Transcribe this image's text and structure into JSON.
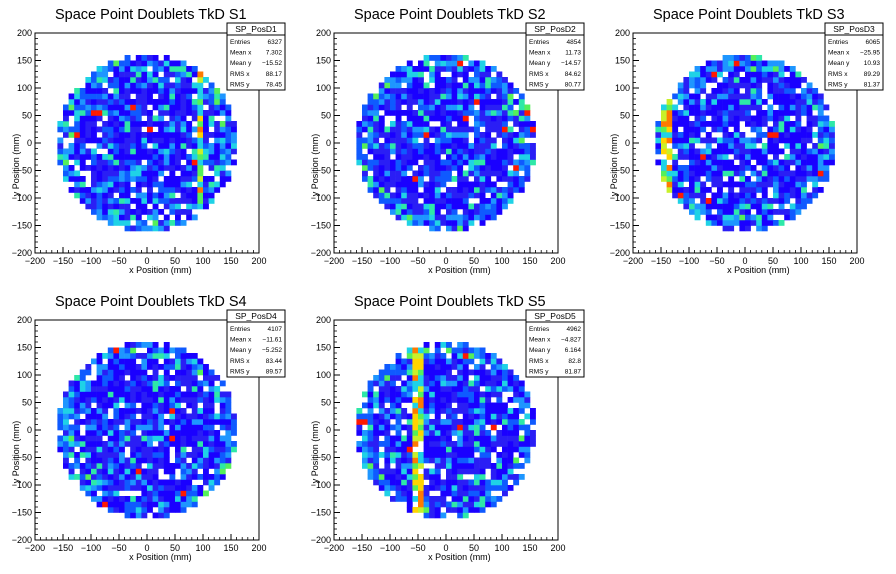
{
  "charts": [
    {
      "title": "Space Point Doublets TkD S1",
      "xlabel": "x Position (mm)",
      "ylabel": "y Position (mm)",
      "stats": {
        "name": "SP_PosD1",
        "rows": [
          {
            "label": "Entries",
            "value": "6327"
          },
          {
            "label": "Mean x",
            "value": "7.302"
          },
          {
            "label": "Mean y",
            "value": "−15.52"
          },
          {
            "label": "RMS x",
            "value": "88.17"
          },
          {
            "label": "RMS y",
            "value": "78.45"
          }
        ]
      }
    },
    {
      "title": "Space Point Doublets TkD S2",
      "xlabel": "x Position (mm)",
      "ylabel": "y Position (mm)",
      "stats": {
        "name": "SP_PosD2",
        "rows": [
          {
            "label": "Entries",
            "value": "4854"
          },
          {
            "label": "Mean x",
            "value": "11.73"
          },
          {
            "label": "Mean y",
            "value": "−14.57"
          },
          {
            "label": "RMS x",
            "value": "84.62"
          },
          {
            "label": "RMS y",
            "value": "80.77"
          }
        ]
      }
    },
    {
      "title": "Space Point Doublets TkD S3",
      "xlabel": "x Position (mm)",
      "ylabel": "y Position (mm)",
      "stats": {
        "name": "SP_PosD3",
        "rows": [
          {
            "label": "Entries",
            "value": "6065"
          },
          {
            "label": "Mean x",
            "value": "−25.95"
          },
          {
            "label": "Mean y",
            "value": "10.93"
          },
          {
            "label": "RMS x",
            "value": "89.29"
          },
          {
            "label": "RMS y",
            "value": "81.37"
          }
        ]
      }
    },
    {
      "title": "Space Point Doublets TkD S4",
      "xlabel": "x Position (mm)",
      "ylabel": "y Position (mm)",
      "stats": {
        "name": "SP_PosD4",
        "rows": [
          {
            "label": "Entries",
            "value": "4107"
          },
          {
            "label": "Mean x",
            "value": "−11.61"
          },
          {
            "label": "Mean y",
            "value": "−5.252"
          },
          {
            "label": "RMS x",
            "value": "83.44"
          },
          {
            "label": "RMS y",
            "value": "89.57"
          }
        ]
      }
    },
    {
      "title": "Space Point Doublets TkD S5",
      "xlabel": "x Position (mm)",
      "ylabel": "y Position (mm)",
      "stats": {
        "name": "SP_PosD5",
        "rows": [
          {
            "label": "Entries",
            "value": "4962"
          },
          {
            "label": "Mean x",
            "value": "−4.827"
          },
          {
            "label": "Mean y",
            "value": "6.164"
          },
          {
            "label": "RMS x",
            "value": "82.8"
          },
          {
            "label": "RMS y",
            "value": "81.87"
          }
        ]
      }
    }
  ],
  "chart_data": [
    {
      "type": "heatmap",
      "title": "Space Point Doublets TkD S1",
      "xlabel": "x Position (mm)",
      "ylabel": "y Position (mm)",
      "xlim": [
        -200,
        200
      ],
      "ylim": [
        -200,
        200
      ],
      "xticks": [
        -200,
        -150,
        -100,
        -50,
        0,
        50,
        100,
        150,
        200
      ],
      "yticks": [
        -200,
        -150,
        -100,
        -50,
        0,
        50,
        100,
        150,
        200
      ],
      "tick_labels": [
        "−200",
        "−150",
        "−100",
        "−50",
        "0",
        "50",
        "100",
        "150",
        "200"
      ],
      "detector_radius_mm": 160,
      "bin_width_mm": 10,
      "colormap": "rainbow",
      "hot_band_x_mm": 95
    },
    {
      "type": "heatmap",
      "title": "Space Point Doublets TkD S2",
      "xlabel": "x Position (mm)",
      "ylabel": "y Position (mm)",
      "xlim": [
        -200,
        200
      ],
      "ylim": [
        -200,
        200
      ],
      "xticks": [
        -200,
        -150,
        -100,
        -50,
        0,
        50,
        100,
        150,
        200
      ],
      "yticks": [
        -200,
        -150,
        -100,
        -50,
        0,
        50,
        100,
        150,
        200
      ],
      "tick_labels": [
        "−200",
        "−150",
        "−100",
        "−50",
        "0",
        "50",
        "100",
        "150",
        "200"
      ],
      "detector_radius_mm": 160,
      "bin_width_mm": 10,
      "colormap": "rainbow"
    },
    {
      "type": "heatmap",
      "title": "Space Point Doublets TkD S3",
      "xlabel": "x Position (mm)",
      "ylabel": "y Position (mm)",
      "xlim": [
        -200,
        200
      ],
      "ylim": [
        -200,
        200
      ],
      "xticks": [
        -200,
        -150,
        -100,
        -50,
        0,
        50,
        100,
        150,
        200
      ],
      "yticks": [
        -200,
        -150,
        -100,
        -50,
        0,
        50,
        100,
        150,
        200
      ],
      "tick_labels": [
        "−200",
        "−150",
        "−100",
        "−50",
        "0",
        "50",
        "100",
        "150",
        "200"
      ],
      "detector_radius_mm": 160,
      "bin_width_mm": 10,
      "colormap": "rainbow",
      "hot_band_x_mm": -140
    },
    {
      "type": "heatmap",
      "title": "Space Point Doublets TkD S4",
      "xlabel": "x Position (mm)",
      "ylabel": "y Position (mm)",
      "xlim": [
        -200,
        200
      ],
      "ylim": [
        -200,
        200
      ],
      "xticks": [
        -200,
        -150,
        -100,
        -50,
        0,
        50,
        100,
        150,
        200
      ],
      "yticks": [
        -200,
        -150,
        -100,
        -50,
        0,
        50,
        100,
        150,
        200
      ],
      "tick_labels": [
        "−200",
        "−150",
        "−100",
        "−50",
        "0",
        "50",
        "100",
        "150",
        "200"
      ],
      "detector_radius_mm": 160,
      "bin_width_mm": 10,
      "colormap": "rainbow"
    },
    {
      "type": "heatmap",
      "title": "Space Point Doublets TkD S5",
      "xlabel": "x Position (mm)",
      "ylabel": "y Position (mm)",
      "xlim": [
        -200,
        200
      ],
      "ylim": [
        -200,
        200
      ],
      "xticks": [
        -200,
        -150,
        -100,
        -50,
        0,
        50,
        100,
        150,
        200
      ],
      "yticks": [
        -200,
        -150,
        -100,
        -50,
        0,
        50,
        100,
        150,
        200
      ],
      "tick_labels": [
        "−200",
        "−150",
        "−100",
        "−50",
        "0",
        "50",
        "100",
        "150",
        "200"
      ],
      "detector_radius_mm": 160,
      "bin_width_mm": 10,
      "colormap": "rainbow",
      "hot_band_x_mm": -50
    }
  ],
  "colors": {
    "palette": [
      "#1a00ff",
      "#2a1ef5",
      "#0f5aff",
      "#1e96ff",
      "#1fd2e6",
      "#2ee8a8",
      "#55f05a",
      "#c8f02a",
      "#ffd400",
      "#ff7a00",
      "#ff1a00"
    ],
    "empty": "#ffffff",
    "frame": "#000000"
  }
}
